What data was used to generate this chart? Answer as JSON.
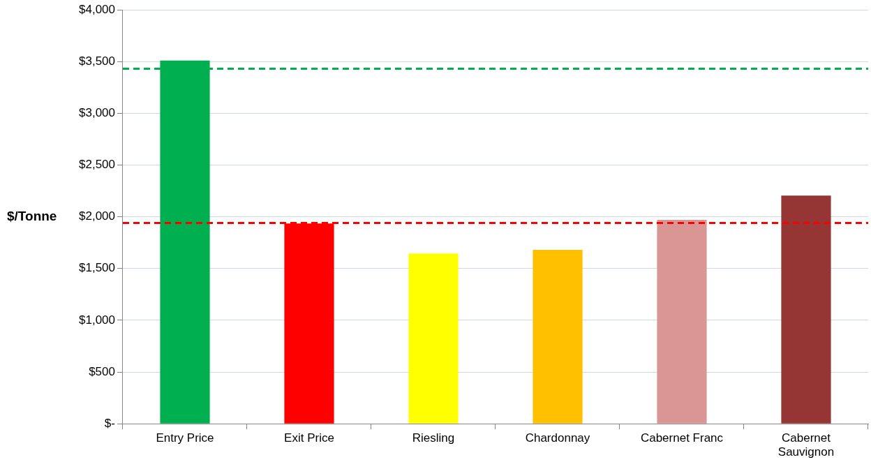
{
  "chart_data": {
    "type": "bar",
    "ylabel": "$/Tonne",
    "categories": [
      "Entry Price",
      "Exit Price",
      "Riesling",
      "Chardonnay",
      "Cabernet Franc",
      "Cabernet Sauvignon"
    ],
    "values": [
      3510,
      1935,
      1645,
      1680,
      1970,
      2205
    ],
    "colors": [
      "#00b050",
      "#ff0000",
      "#ffff00",
      "#ffc000",
      "#da9694",
      "#963634"
    ],
    "ylim": [
      0,
      4000
    ],
    "yticks": [
      {
        "value": 0,
        "label": "$-"
      },
      {
        "value": 500,
        "label": "$500"
      },
      {
        "value": 1000,
        "label": "$1,000"
      },
      {
        "value": 1500,
        "label": "$1,500"
      },
      {
        "value": 2000,
        "label": "$2,000"
      },
      {
        "value": 2500,
        "label": "$2,500"
      },
      {
        "value": 3000,
        "label": "$3,000"
      },
      {
        "value": 3500,
        "label": "$3,500"
      },
      {
        "value": 4000,
        "label": "$4,000"
      }
    ],
    "grid": "y",
    "ref_lines": [
      {
        "axis": "y",
        "value": 3430,
        "color": "#00b050",
        "line_style": "dashed"
      },
      {
        "axis": "y",
        "value": 1940,
        "color": "#ff0000",
        "line_style": "dashed"
      }
    ]
  }
}
